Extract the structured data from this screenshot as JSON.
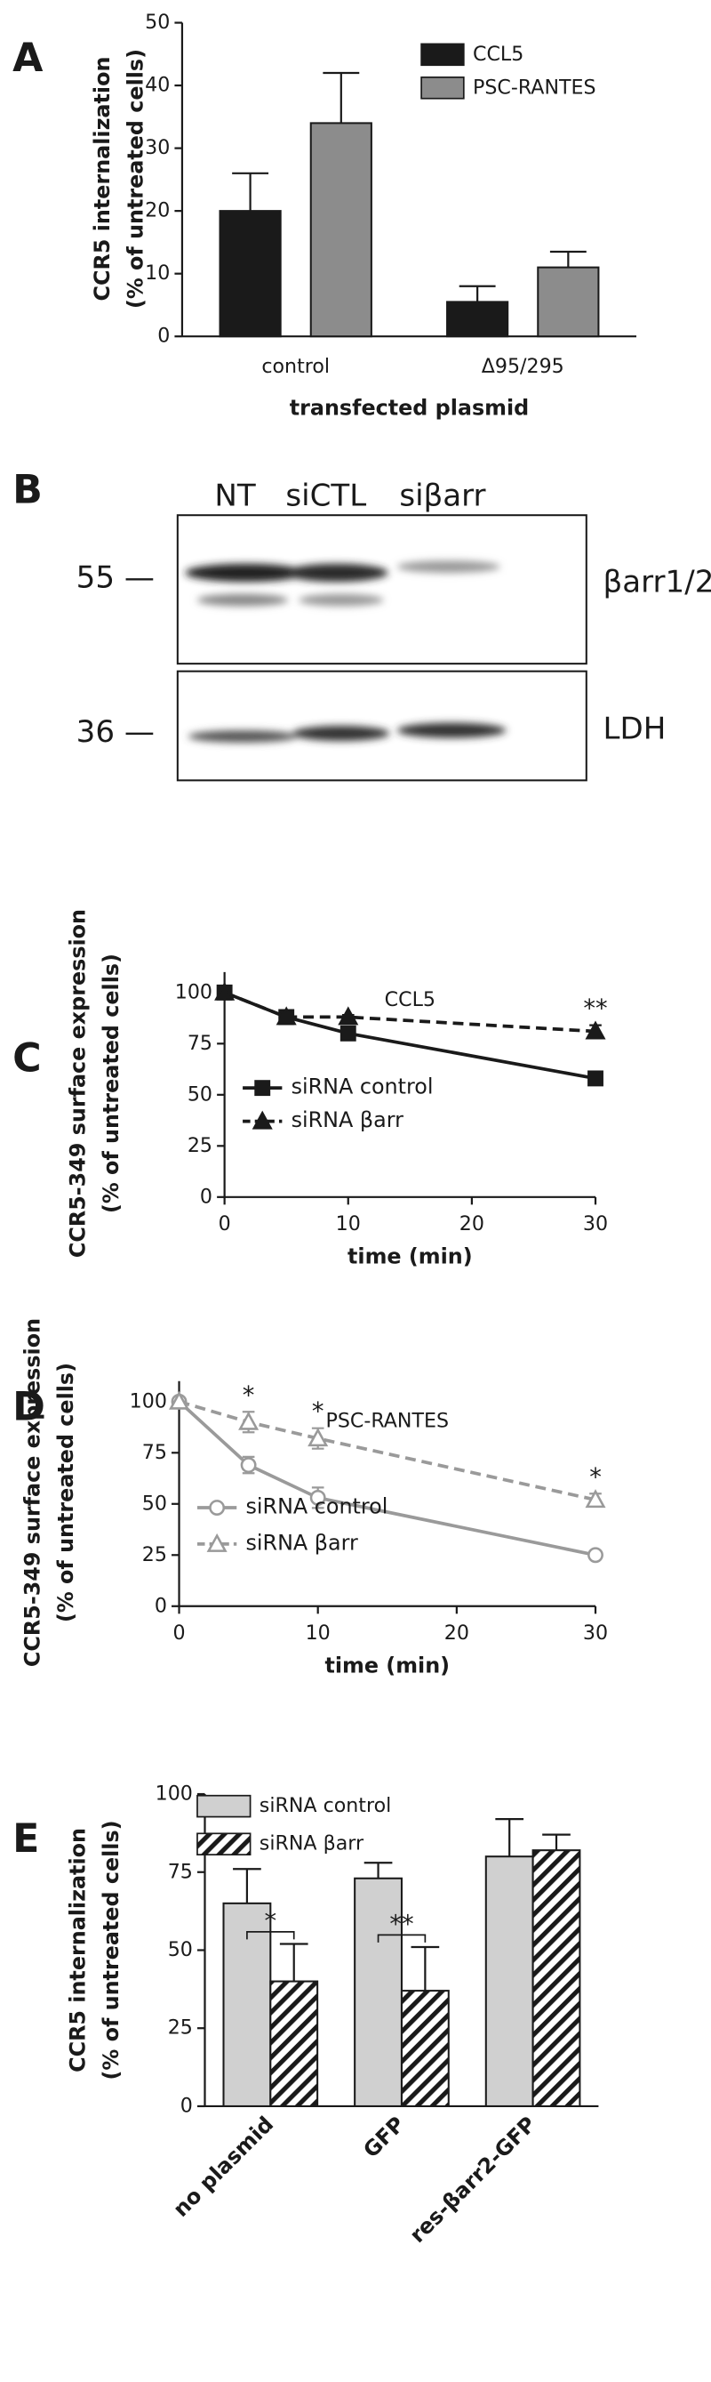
{
  "chart_data": [
    {
      "type": "bar",
      "panel": "A",
      "ylabel": [
        "CCR5 internalization",
        "(% of untreated cells)"
      ],
      "xlabel": "transfected plasmid",
      "categories": [
        "control",
        "Δ95/295"
      ],
      "series": [
        {
          "name": "CCL5",
          "color": "#1a1a1a",
          "values": [
            20,
            5.5
          ],
          "errors": [
            6,
            2.5
          ]
        },
        {
          "name": "PSC-RANTES",
          "color": "#8c8c8c",
          "values": [
            34,
            11
          ],
          "errors": [
            8,
            2.5
          ]
        }
      ],
      "ylim": [
        0,
        50
      ],
      "yticks": [
        0,
        10,
        20,
        30,
        40,
        50
      ]
    },
    {
      "type": "line",
      "panel": "C",
      "title": "CCL5",
      "ylabel": [
        "CCR5-349 surface expression",
        "(% of untreated cells)"
      ],
      "xlabel": "time (min)",
      "x": [
        0,
        5,
        10,
        30
      ],
      "series": [
        {
          "name": "siRNA control",
          "color": "#1a1a1a",
          "marker": "square",
          "dash": false,
          "values": [
            100,
            88,
            80,
            58
          ]
        },
        {
          "name": "siRNA βarr",
          "color": "#1a1a1a",
          "marker": "triangle",
          "dash": true,
          "values": [
            100,
            88,
            88,
            81
          ],
          "errors": [
            0,
            1,
            1,
            3
          ]
        }
      ],
      "significance": [
        null,
        null,
        null,
        "**"
      ],
      "xlim": [
        0,
        30
      ],
      "xticks": [
        0,
        10,
        20,
        30
      ],
      "ylim": [
        0,
        110
      ],
      "yticks": [
        0,
        25,
        50,
        75,
        100
      ]
    },
    {
      "type": "line",
      "panel": "D",
      "title": "PSC-RANTES",
      "ylabel": [
        "CCR5-349 surface expression",
        "(% of untreated cells)"
      ],
      "xlabel": "time (min)",
      "x": [
        0,
        5,
        10,
        30
      ],
      "series": [
        {
          "name": "siRNA control",
          "color": "#9a9a9a",
          "marker": "circle-open",
          "dash": false,
          "values": [
            100,
            69,
            53,
            25
          ],
          "errors": [
            0,
            4,
            5,
            1
          ]
        },
        {
          "name": "siRNA βarr",
          "color": "#9a9a9a",
          "marker": "triangle-open",
          "dash": true,
          "values": [
            100,
            90,
            82,
            52
          ],
          "errors": [
            0,
            5,
            5,
            3
          ]
        }
      ],
      "significance": [
        null,
        "*",
        "*",
        "*"
      ],
      "xlim": [
        0,
        30
      ],
      "xticks": [
        0,
        10,
        20,
        30
      ],
      "ylim": [
        0,
        110
      ],
      "yticks": [
        0,
        25,
        50,
        75,
        100
      ]
    },
    {
      "type": "bar",
      "panel": "E",
      "ylabel": [
        "CCR5 internalization",
        "(% of untreated cells)"
      ],
      "categories": [
        "no plasmid",
        "GFP",
        "res-βarr2-GFP"
      ],
      "series": [
        {
          "name": "siRNA control",
          "color": "#d0d0d0",
          "values": [
            65,
            73,
            80
          ],
          "errors": [
            11,
            5,
            12
          ]
        },
        {
          "name": "siRNA βarr",
          "color": "#ffffff",
          "pattern": "hatch",
          "values": [
            40,
            37,
            82
          ],
          "errors": [
            12,
            14,
            5
          ]
        }
      ],
      "significance": [
        "*",
        "**",
        null
      ],
      "ylim": [
        0,
        100
      ],
      "yticks": [
        0,
        25,
        50,
        75,
        100
      ]
    }
  ],
  "blot": {
    "panel": "B",
    "lanes": [
      "NT",
      "siCTL",
      "siβarr"
    ],
    "rows": [
      {
        "marker": "55 —",
        "label": "βarr1/2"
      },
      {
        "marker": "36 —",
        "label": "LDH"
      }
    ]
  }
}
